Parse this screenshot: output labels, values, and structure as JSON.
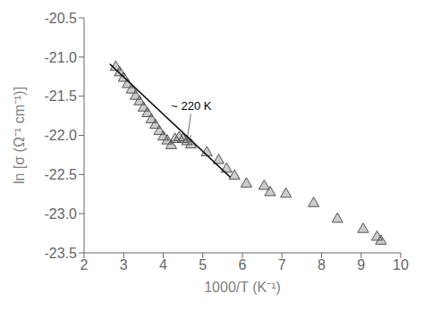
{
  "chart_data": {
    "type": "scatter",
    "xlabel": "1000/T (K⁻¹)",
    "ylabel": "ln [σ (Ω⁻¹ cm⁻¹)]",
    "series": [
      {
        "type": "scatter",
        "marker": "triangle",
        "color": "#555555",
        "x": [
          2.8,
          2.9,
          3.0,
          3.1,
          3.2,
          3.3,
          3.4,
          3.5,
          3.6,
          3.7,
          3.8,
          3.9,
          4.0,
          4.1,
          4.2,
          4.3,
          4.4,
          4.5,
          4.6,
          4.7,
          5.1,
          5.4,
          5.6,
          5.8,
          6.1,
          6.55,
          6.7,
          7.1,
          7.8,
          8.4,
          9.05,
          9.4,
          9.5
        ],
        "values": [
          -21.13,
          -21.2,
          -21.27,
          -21.35,
          -21.42,
          -21.5,
          -21.57,
          -21.65,
          -21.72,
          -21.8,
          -21.87,
          -21.95,
          -22.02,
          -22.07,
          -22.13,
          -22.05,
          -22.03,
          -22.05,
          -22.08,
          -22.12,
          -22.22,
          -22.32,
          -22.43,
          -22.52,
          -22.62,
          -22.65,
          -22.73,
          -22.75,
          -22.87,
          -23.07,
          -23.2,
          -23.3,
          -23.35
        ]
      },
      {
        "type": "line",
        "line_style": "solid",
        "color": "#111111",
        "x": [
          2.65,
          5.7
        ],
        "values": [
          -21.08875,
          -22.5375
        ]
      }
    ],
    "annotations": [
      {
        "text": "~ 220 K",
        "x": 4.6,
        "y": -22.07,
        "text_x": 4.2,
        "text_y": -21.68,
        "color": "#888888"
      }
    ],
    "xlim": [
      2,
      10
    ],
    "ylim": [
      -23.5,
      -20.5
    ],
    "xticks": [
      2,
      3,
      4,
      5,
      6,
      7,
      8,
      9,
      10
    ],
    "yticks": [
      -23.5,
      {
        "value": -23,
        "label": "-23.0"
      },
      -22.5,
      {
        "value": -22,
        "label": "-22.0"
      },
      -21.5,
      {
        "value": -21,
        "label": "-21.0"
      },
      -20.5
    ],
    "grid": false
  }
}
